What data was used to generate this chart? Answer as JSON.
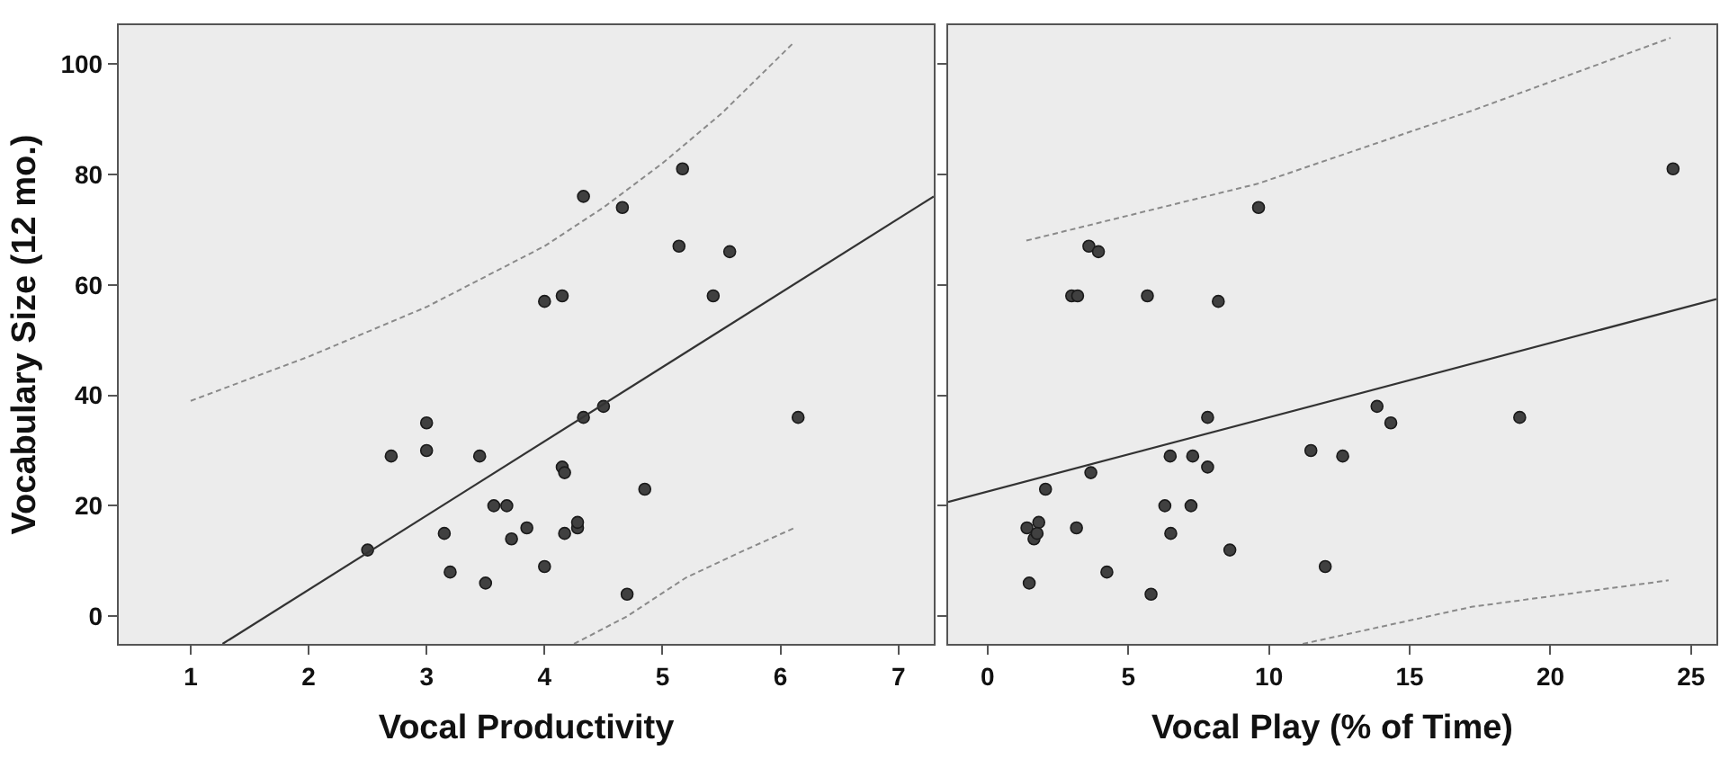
{
  "chart_data": [
    {
      "type": "scatter",
      "xlabel": "Vocal Productivity",
      "ylabel": "Vocabulary Size (12 mo.)",
      "xlim": [
        0.39,
        7.3
      ],
      "xticks": [
        1,
        2,
        3,
        4,
        5,
        6,
        7
      ],
      "ylim": [
        -5,
        107
      ],
      "yticks": [
        0,
        20,
        40,
        60,
        80,
        100
      ],
      "grid": false,
      "series": [
        {
          "marker": "circle",
          "color": "#404040",
          "x": [
            2.5,
            2.7,
            3.0,
            3.0,
            3.15,
            3.2,
            3.45,
            3.5,
            3.57,
            3.68,
            3.72,
            3.85,
            4.0,
            4.0,
            4.15,
            4.15,
            4.17,
            4.17,
            4.28,
            4.28,
            4.33,
            4.33,
            4.5,
            4.66,
            4.7,
            4.85,
            5.14,
            5.17,
            5.43,
            5.57,
            6.15
          ],
          "values": [
            12,
            29,
            35,
            30,
            15,
            8,
            29,
            6,
            20,
            20,
            14,
            16,
            9,
            57,
            58,
            27,
            26,
            15,
            16,
            17,
            36,
            76,
            38,
            74,
            4,
            23,
            67,
            81,
            58,
            66,
            36
          ]
        },
        {
          "type": "line",
          "line_style": "solid",
          "color": "#333333",
          "x": [
            1.27,
            7.3
          ],
          "values": [
            -5,
            76
          ]
        },
        {
          "type": "line",
          "line_style": "dashed",
          "color": "#8a8a8a",
          "x": [
            1,
            2,
            3,
            4,
            4.5,
            5,
            5.5,
            6.12
          ],
          "values": [
            39,
            47,
            56,
            67,
            74,
            82,
            91,
            104
          ]
        },
        {
          "type": "line",
          "line_style": "dashed",
          "color": "#8a8a8a",
          "x": [
            4.25,
            4.7,
            5.2,
            5.7,
            6.12
          ],
          "values": [
            -5,
            0,
            7,
            12,
            16
          ]
        }
      ]
    },
    {
      "type": "scatter",
      "xlabel": "Vocal Play (% of Time)",
      "xlim": [
        -1.4,
        25.9
      ],
      "xticks": [
        0,
        5,
        10,
        15,
        20,
        25
      ],
      "ylim": [
        -5,
        107
      ],
      "yticks": [
        0,
        20,
        40,
        60,
        80,
        100
      ],
      "tick_labels": "x",
      "grid": false,
      "series": [
        {
          "marker": "circle",
          "color": "#404040",
          "x": [
            1.4,
            1.82,
            1.65,
            1.76,
            1.48,
            2.06,
            3.16,
            3.67,
            4.24,
            5.81,
            6.3,
            6.49,
            6.51,
            7.23,
            7.29,
            7.82,
            7.82,
            8.61,
            11.49,
            12.0,
            12.62,
            13.84,
            14.33,
            18.91,
            24.36,
            9.63,
            3.6,
            3.94,
            2.99,
            3.2,
            5.68,
            8.2
          ],
          "values": [
            16,
            17,
            14,
            15,
            6,
            23,
            16,
            26,
            8,
            4,
            20,
            29,
            15,
            20,
            29,
            36,
            27,
            12,
            30,
            9,
            29,
            38,
            35,
            36,
            81,
            74,
            67,
            66,
            58,
            58,
            58,
            57
          ]
        },
        {
          "type": "line",
          "line_style": "solid",
          "color": "#333333",
          "x": [
            -1.4,
            25.9
          ],
          "values": [
            20.7,
            57.4
          ]
        },
        {
          "type": "line",
          "line_style": "dashed",
          "color": "#8a8a8a",
          "x": [
            1.38,
            9.6,
            17.2,
            24.27
          ],
          "values": [
            68,
            78.3,
            91.5,
            104.7
          ]
        },
        {
          "type": "line",
          "line_style": "dashed",
          "color": "#8a8a8a",
          "x": [
            11.2,
            17.2,
            24.2
          ],
          "values": [
            -5,
            1.7,
            6.5
          ]
        }
      ]
    }
  ]
}
